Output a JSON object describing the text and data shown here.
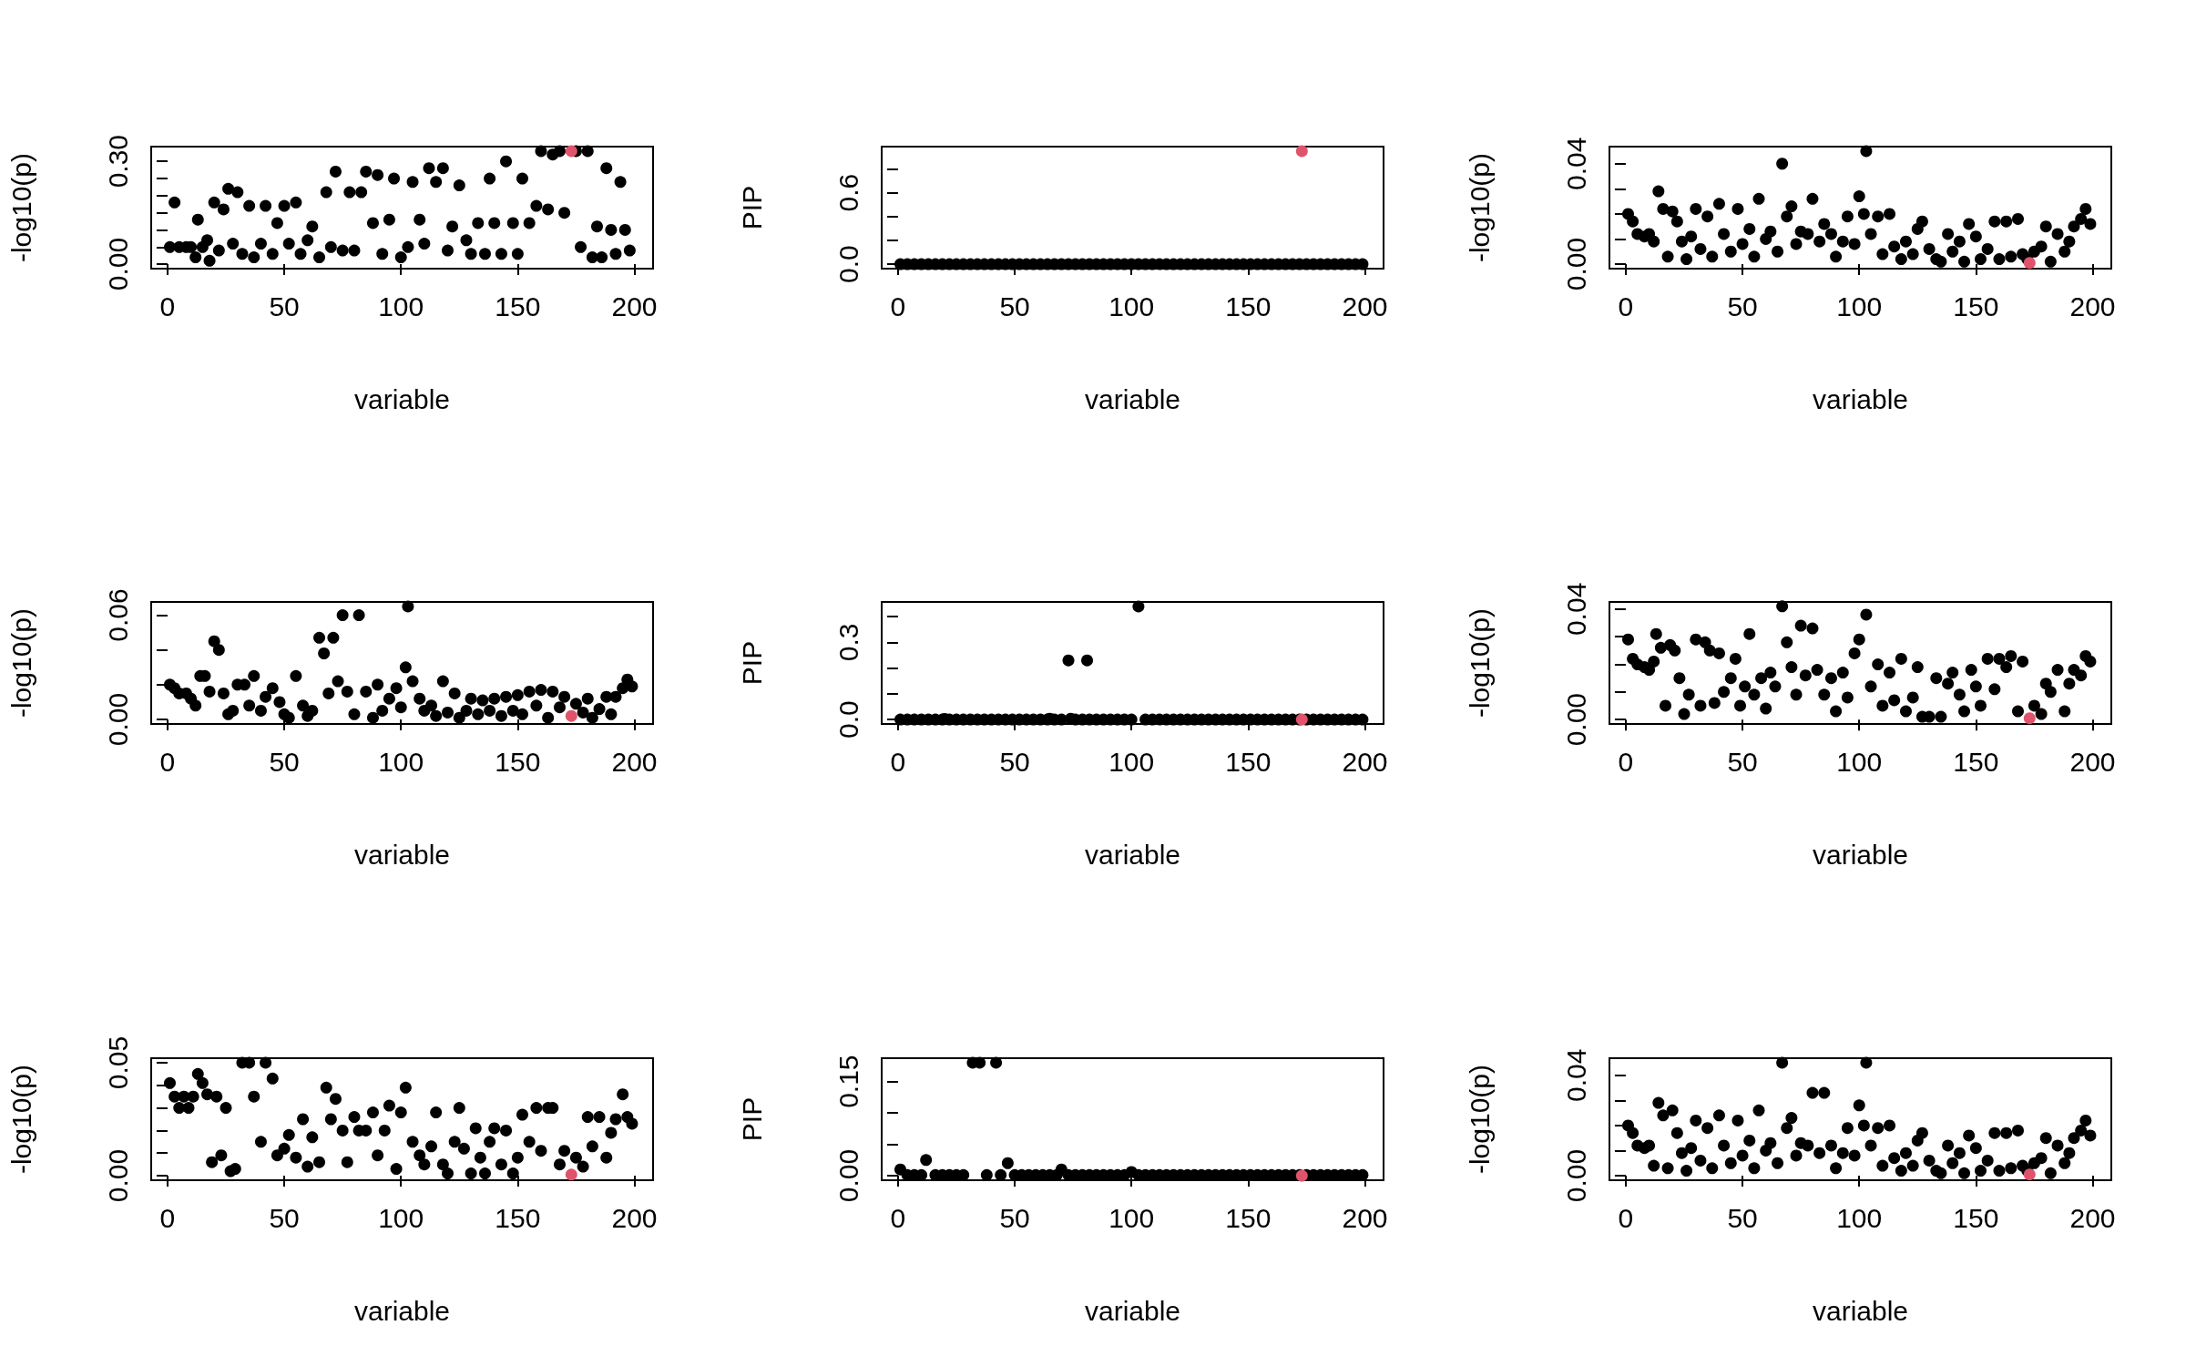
{
  "chart_data": [
    {
      "type": "scatter",
      "xlabel": "variable",
      "ylabel": "-log10(p)",
      "marker": "circle",
      "xlim": [
        -7,
        208
      ],
      "xticks": [
        0,
        50,
        100,
        150,
        200
      ],
      "ylim": [
        -0.013,
        0.343
      ],
      "yticks": [
        {
          "value": 0,
          "label": "0.00"
        },
        {
          "value": 0.05,
          "label": null
        },
        {
          "value": 0.1,
          "label": null
        },
        {
          "value": 0.15,
          "label": null
        },
        {
          "value": 0.2,
          "label": null
        },
        {
          "value": 0.25,
          "label": null
        },
        {
          "value": 0.3,
          "label": "0.30"
        }
      ],
      "series": [
        {
          "color": "#000000",
          "x": [
            1,
            3,
            5,
            8,
            10,
            12,
            13,
            15,
            17,
            18,
            20,
            22,
            24,
            26,
            28,
            30,
            32,
            35,
            37,
            40,
            42,
            45,
            47,
            50,
            52,
            55,
            57,
            60,
            62,
            65,
            68,
            70,
            72,
            75,
            78,
            80,
            83,
            85,
            88,
            90,
            92,
            95,
            97,
            100,
            103,
            105,
            108,
            110,
            112,
            115,
            118,
            120,
            122,
            125,
            128,
            130,
            133,
            136,
            138,
            140,
            143,
            145,
            148,
            150,
            152,
            155,
            158,
            160,
            163,
            165,
            168,
            170,
            175,
            177,
            180,
            182,
            184,
            186,
            188,
            190,
            192,
            194,
            196,
            198
          ],
          "values": [
            0.05,
            0.18,
            0.05,
            0.05,
            0.05,
            0.02,
            0.13,
            0.05,
            0.07,
            0.01,
            0.18,
            0.04,
            0.16,
            0.22,
            0.06,
            0.21,
            0.03,
            0.17,
            0.02,
            0.06,
            0.17,
            0.03,
            0.12,
            0.17,
            0.06,
            0.18,
            0.03,
            0.07,
            0.11,
            0.02,
            0.21,
            0.05,
            0.27,
            0.04,
            0.21,
            0.04,
            0.21,
            0.27,
            0.12,
            0.26,
            0.03,
            0.13,
            0.25,
            0.02,
            0.05,
            0.24,
            0.13,
            0.06,
            0.28,
            0.24,
            0.28,
            0.04,
            0.11,
            0.23,
            0.07,
            0.03,
            0.12,
            0.03,
            0.25,
            0.12,
            0.03,
            0.3,
            0.12,
            0.03,
            0.25,
            0.12,
            0.17,
            0.33,
            0.16,
            0.32,
            0.33,
            0.15,
            0.33,
            0.05,
            0.33,
            0.02,
            0.11,
            0.02,
            0.28,
            0.1,
            0.03,
            0.24,
            0.1,
            0.04
          ]
        },
        {
          "color": "#df536b",
          "x": [
            173
          ],
          "values": [
            0.33
          ]
        }
      ]
    },
    {
      "type": "scatter",
      "xlabel": "variable",
      "ylabel": "PIP",
      "marker": "circle",
      "xlim": [
        -7,
        208
      ],
      "xticks": [
        0,
        50,
        100,
        150,
        200
      ],
      "ylim": [
        -0.038,
        0.988
      ],
      "yticks": [
        {
          "value": 0,
          "label": "0.0"
        },
        {
          "value": 0.2,
          "label": null
        },
        {
          "value": 0.4,
          "label": null
        },
        {
          "value": 0.6,
          "label": "0.6"
        },
        {
          "value": 0.8,
          "label": null
        }
      ],
      "series": [
        {
          "color": "#000000",
          "x": [
            1,
            4,
            7,
            10,
            13,
            16,
            19,
            22,
            25,
            28,
            31,
            34,
            37,
            40,
            43,
            46,
            49,
            52,
            55,
            58,
            61,
            64,
            67,
            70,
            73,
            76,
            79,
            82,
            85,
            88,
            91,
            94,
            97,
            100,
            103,
            106,
            109,
            112,
            115,
            118,
            121,
            124,
            127,
            130,
            133,
            136,
            139,
            142,
            145,
            148,
            151,
            154,
            157,
            160,
            163,
            166,
            169,
            172,
            175,
            178,
            181,
            184,
            187,
            190,
            193,
            196,
            199
          ],
          "values": [
            0,
            0,
            0,
            0,
            0,
            0,
            0,
            0,
            0,
            0,
            0,
            0,
            0,
            0,
            0,
            0,
            0,
            0,
            0,
            0,
            0,
            0,
            0,
            0,
            0,
            0,
            0,
            0,
            0,
            0,
            0,
            0,
            0,
            0,
            0,
            0,
            0,
            0,
            0,
            0,
            0,
            0,
            0,
            0,
            0,
            0,
            0,
            0,
            0,
            0,
            0,
            0,
            0,
            0,
            0,
            0,
            0,
            0,
            0,
            0,
            0,
            0,
            0,
            0,
            0,
            0,
            0
          ]
        },
        {
          "color": "#df536b",
          "x": [
            173
          ],
          "values": [
            0.95
          ]
        }
      ]
    },
    {
      "type": "scatter",
      "xlabel": "variable",
      "ylabel": "-log10(p)",
      "marker": "circle",
      "xlim": [
        -7,
        208
      ],
      "xticks": [
        0,
        50,
        100,
        150,
        200
      ],
      "ylim": [
        -0.0018,
        0.0468
      ],
      "yticks": [
        {
          "value": 0,
          "label": "0.00"
        },
        {
          "value": 0.01,
          "label": null
        },
        {
          "value": 0.02,
          "label": null
        },
        {
          "value": 0.03,
          "label": null
        },
        {
          "value": 0.04,
          "label": "0.04"
        }
      ],
      "series": [
        {
          "color": "#000000",
          "x": [
            1,
            3,
            5,
            8,
            10,
            12,
            14,
            16,
            18,
            20,
            22,
            24,
            26,
            28,
            30,
            32,
            35,
            37,
            40,
            42,
            45,
            48,
            50,
            53,
            55,
            57,
            60,
            62,
            65,
            67,
            69,
            71,
            73,
            75,
            78,
            80,
            83,
            85,
            88,
            90,
            93,
            95,
            98,
            100,
            102,
            103,
            105,
            108,
            110,
            113,
            115,
            118,
            120,
            123,
            125,
            127,
            130,
            133,
            135,
            138,
            140,
            143,
            145,
            147,
            150,
            152,
            155,
            158,
            160,
            163,
            165,
            168,
            170,
            172,
            175,
            178,
            180,
            182,
            185,
            188,
            190,
            192,
            195,
            197,
            199
          ],
          "values": [
            0.02,
            0.017,
            0.012,
            0.011,
            0.012,
            0.009,
            0.029,
            0.022,
            0.003,
            0.021,
            0.017,
            0.009,
            0.002,
            0.011,
            0.022,
            0.006,
            0.019,
            0.003,
            0.024,
            0.012,
            0.005,
            0.022,
            0.008,
            0.014,
            0.003,
            0.026,
            0.01,
            0.013,
            0.005,
            0.04,
            0.019,
            0.023,
            0.008,
            0.013,
            0.012,
            0.026,
            0.009,
            0.016,
            0.012,
            0.003,
            0.009,
            0.019,
            0.008,
            0.027,
            0.02,
            0.045,
            0.012,
            0.019,
            0.004,
            0.02,
            0.007,
            0.002,
            0.009,
            0.004,
            0.014,
            0.017,
            0.006,
            0.002,
            0.001,
            0.012,
            0.005,
            0.009,
            0.001,
            0.016,
            0.011,
            0.002,
            0.006,
            0.017,
            0.002,
            0.017,
            0.003,
            0.018,
            0.004,
            0.002,
            0.005,
            0.007,
            0.015,
            0.001,
            0.012,
            0.005,
            0.009,
            0.015,
            0.018,
            0.022,
            0.016
          ]
        },
        {
          "color": "#df536b",
          "x": [
            173
          ],
          "values": [
            0.0005
          ]
        }
      ]
    },
    {
      "type": "scatter",
      "xlabel": "variable",
      "ylabel": "-log10(p)",
      "marker": "circle",
      "xlim": [
        -7,
        208
      ],
      "xticks": [
        0,
        50,
        100,
        150,
        200
      ],
      "ylim": [
        -0.0026,
        0.0676
      ],
      "yticks": [
        {
          "value": 0,
          "label": "0.00"
        },
        {
          "value": 0.02,
          "label": null
        },
        {
          "value": 0.04,
          "label": null
        },
        {
          "value": 0.06,
          "label": "0.06"
        }
      ],
      "series": [
        {
          "color": "#000000",
          "x": [
            1,
            3,
            5,
            8,
            10,
            12,
            14,
            16,
            18,
            20,
            22,
            24,
            26,
            28,
            30,
            33,
            35,
            37,
            40,
            42,
            45,
            48,
            50,
            52,
            55,
            58,
            60,
            62,
            65,
            67,
            69,
            71,
            73,
            75,
            77,
            80,
            82,
            85,
            88,
            90,
            92,
            95,
            98,
            100,
            102,
            103,
            105,
            108,
            110,
            113,
            115,
            118,
            120,
            123,
            125,
            128,
            130,
            133,
            135,
            138,
            140,
            143,
            145,
            148,
            150,
            152,
            155,
            158,
            160,
            163,
            165,
            168,
            170,
            175,
            178,
            180,
            182,
            185,
            188,
            190,
            192,
            195,
            197,
            199
          ],
          "values": [
            0.02,
            0.018,
            0.015,
            0.015,
            0.012,
            0.008,
            0.025,
            0.025,
            0.016,
            0.045,
            0.04,
            0.015,
            0.003,
            0.005,
            0.02,
            0.02,
            0.008,
            0.025,
            0.005,
            0.013,
            0.018,
            0.01,
            0.003,
            0.001,
            0.025,
            0.008,
            0.002,
            0.005,
            0.047,
            0.038,
            0.015,
            0.047,
            0.022,
            0.06,
            0.016,
            0.003,
            0.06,
            0.016,
            0.001,
            0.02,
            0.005,
            0.012,
            0.018,
            0.007,
            0.03,
            0.065,
            0.022,
            0.012,
            0.005,
            0.008,
            0.002,
            0.022,
            0.004,
            0.015,
            0.001,
            0.005,
            0.012,
            0.003,
            0.011,
            0.005,
            0.012,
            0.002,
            0.013,
            0.005,
            0.014,
            0.003,
            0.016,
            0.008,
            0.017,
            0.001,
            0.016,
            0.007,
            0.013,
            0.009,
            0.004,
            0.012,
            0.001,
            0.006,
            0.013,
            0.003,
            0.013,
            0.018,
            0.023,
            0.019
          ]
        },
        {
          "color": "#df536b",
          "x": [
            173
          ],
          "values": [
            0.002
          ]
        }
      ]
    },
    {
      "type": "scatter",
      "xlabel": "variable",
      "ylabel": "PIP",
      "marker": "circle",
      "xlim": [
        -7,
        208
      ],
      "xticks": [
        0,
        50,
        100,
        150,
        200
      ],
      "ylim": [
        -0.0176,
        0.4576
      ],
      "yticks": [
        {
          "value": 0,
          "label": "0.0"
        },
        {
          "value": 0.1,
          "label": null
        },
        {
          "value": 0.2,
          "label": null
        },
        {
          "value": 0.3,
          "label": "0.3"
        },
        {
          "value": 0.4,
          "label": null
        }
      ],
      "series": [
        {
          "color": "#000000",
          "x": [
            1,
            4,
            7,
            10,
            13,
            16,
            19,
            20,
            22,
            25,
            28,
            31,
            34,
            37,
            40,
            43,
            46,
            49,
            52,
            55,
            58,
            61,
            64,
            65,
            67,
            70,
            73,
            74,
            76,
            79,
            81,
            82,
            85,
            88,
            91,
            94,
            97,
            100,
            103,
            106,
            109,
            112,
            115,
            118,
            121,
            124,
            127,
            130,
            133,
            136,
            139,
            142,
            145,
            148,
            151,
            154,
            157,
            160,
            163,
            166,
            169,
            172,
            175,
            178,
            181,
            184,
            187,
            190,
            193,
            196,
            199
          ],
          "values": [
            0,
            0,
            0,
            0,
            0,
            0,
            0,
            0.002,
            0,
            0,
            0,
            0,
            0,
            0,
            0,
            0,
            0,
            0,
            0,
            0,
            0,
            0,
            0,
            0.003,
            0,
            0,
            0.23,
            0.003,
            0,
            0,
            0.23,
            0,
            0,
            0,
            0,
            0,
            0,
            0,
            0.44,
            0,
            0,
            0,
            0,
            0,
            0,
            0,
            0,
            0,
            0,
            0,
            0,
            0,
            0,
            0,
            0,
            0,
            0,
            0,
            0,
            0,
            0,
            0,
            0,
            0,
            0,
            0,
            0,
            0,
            0,
            0,
            0
          ]
        },
        {
          "color": "#df536b",
          "x": [
            173
          ],
          "values": [
            0
          ]
        }
      ]
    },
    {
      "type": "scatter",
      "xlabel": "variable",
      "ylabel": "-log10(p)",
      "marker": "circle",
      "xlim": [
        -7,
        208
      ],
      "xticks": [
        0,
        50,
        100,
        150,
        200
      ],
      "ylim": [
        -0.0016,
        0.0426
      ],
      "yticks": [
        {
          "value": 0,
          "label": "0.00"
        },
        {
          "value": 0.01,
          "label": null
        },
        {
          "value": 0.02,
          "label": null
        },
        {
          "value": 0.03,
          "label": null
        },
        {
          "value": 0.04,
          "label": "0.04"
        }
      ],
      "series": [
        {
          "color": "#000000",
          "x": [
            1,
            3,
            5,
            8,
            10,
            12,
            13,
            15,
            17,
            19,
            21,
            23,
            25,
            27,
            30,
            32,
            34,
            36,
            38,
            40,
            42,
            45,
            47,
            49,
            51,
            53,
            55,
            58,
            60,
            62,
            64,
            67,
            69,
            71,
            73,
            75,
            77,
            80,
            82,
            85,
            88,
            90,
            93,
            95,
            98,
            100,
            103,
            105,
            108,
            110,
            113,
            115,
            118,
            120,
            123,
            125,
            127,
            130,
            133,
            135,
            138,
            140,
            143,
            145,
            148,
            150,
            152,
            155,
            158,
            160,
            163,
            165,
            168,
            170,
            175,
            178,
            180,
            182,
            185,
            188,
            190,
            192,
            195,
            197,
            199
          ],
          "values": [
            0.029,
            0.022,
            0.02,
            0.019,
            0.018,
            0.021,
            0.031,
            0.026,
            0.005,
            0.027,
            0.025,
            0.015,
            0.002,
            0.009,
            0.029,
            0.005,
            0.028,
            0.025,
            0.006,
            0.024,
            0.01,
            0.015,
            0.022,
            0.005,
            0.012,
            0.031,
            0.009,
            0.015,
            0.004,
            0.017,
            0.012,
            0.041,
            0.028,
            0.019,
            0.009,
            0.034,
            0.016,
            0.033,
            0.018,
            0.009,
            0.015,
            0.003,
            0.017,
            0.008,
            0.024,
            0.029,
            0.038,
            0.012,
            0.02,
            0.005,
            0.017,
            0.007,
            0.022,
            0.003,
            0.008,
            0.019,
            0.001,
            0.001,
            0.015,
            0.001,
            0.013,
            0.017,
            0.009,
            0.003,
            0.018,
            0.012,
            0.005,
            0.022,
            0.011,
            0.022,
            0.019,
            0.023,
            0.003,
            0.021,
            0.005,
            0.002,
            0.013,
            0.01,
            0.018,
            0.003,
            0.013,
            0.018,
            0.016,
            0.023,
            0.021
          ]
        },
        {
          "color": "#df536b",
          "x": [
            173
          ],
          "values": [
            0.0005
          ]
        }
      ]
    },
    {
      "type": "scatter",
      "xlabel": "variable",
      "ylabel": "-log10(p)",
      "marker": "circle",
      "xlim": [
        -7,
        208
      ],
      "xticks": [
        0,
        50,
        100,
        150,
        200
      ],
      "ylim": [
        -0.002,
        0.052
      ],
      "yticks": [
        {
          "value": 0,
          "label": "0.00"
        },
        {
          "value": 0.01,
          "label": null
        },
        {
          "value": 0.02,
          "label": null
        },
        {
          "value": 0.03,
          "label": null
        },
        {
          "value": 0.04,
          "label": null
        },
        {
          "value": 0.05,
          "label": "0.05"
        }
      ],
      "series": [
        {
          "color": "#000000",
          "x": [
            1,
            3,
            5,
            7,
            9,
            11,
            13,
            15,
            17,
            19,
            21,
            23,
            25,
            27,
            29,
            32,
            35,
            37,
            40,
            42,
            45,
            47,
            50,
            52,
            55,
            58,
            60,
            62,
            65,
            68,
            70,
            72,
            75,
            77,
            80,
            82,
            85,
            88,
            90,
            93,
            95,
            98,
            100,
            102,
            105,
            108,
            110,
            113,
            115,
            118,
            120,
            123,
            125,
            127,
            130,
            132,
            134,
            136,
            138,
            140,
            143,
            145,
            148,
            150,
            152,
            155,
            158,
            160,
            163,
            165,
            168,
            170,
            175,
            178,
            180,
            182,
            185,
            188,
            190,
            192,
            195,
            197,
            199
          ],
          "values": [
            0.041,
            0.035,
            0.03,
            0.035,
            0.03,
            0.035,
            0.045,
            0.041,
            0.036,
            0.006,
            0.035,
            0.009,
            0.03,
            0.002,
            0.003,
            0.05,
            0.05,
            0.035,
            0.015,
            0.05,
            0.043,
            0.009,
            0.012,
            0.018,
            0.008,
            0.025,
            0.004,
            0.017,
            0.006,
            0.039,
            0.025,
            0.034,
            0.02,
            0.006,
            0.026,
            0.02,
            0.02,
            0.028,
            0.009,
            0.02,
            0.031,
            0.003,
            0.028,
            0.039,
            0.015,
            0.009,
            0.005,
            0.013,
            0.028,
            0.005,
            0.001,
            0.015,
            0.03,
            0.012,
            0.001,
            0.021,
            0.008,
            0.001,
            0.015,
            0.021,
            0.005,
            0.02,
            0.001,
            0.008,
            0.027,
            0.015,
            0.03,
            0.011,
            0.03,
            0.03,
            0.005,
            0.011,
            0.008,
            0.004,
            0.026,
            0.013,
            0.026,
            0.008,
            0.019,
            0.025,
            0.036,
            0.026,
            0.023
          ]
        },
        {
          "color": "#df536b",
          "x": [
            173
          ],
          "values": [
            0.0005
          ]
        }
      ]
    },
    {
      "type": "scatter",
      "xlabel": "variable",
      "ylabel": "PIP",
      "marker": "circle",
      "xlim": [
        -7,
        208
      ],
      "xticks": [
        0,
        50,
        100,
        150,
        200
      ],
      "ylim": [
        -0.0072,
        0.1872
      ],
      "yticks": [
        {
          "value": 0,
          "label": "0.00"
        },
        {
          "value": 0.05,
          "label": null
        },
        {
          "value": 0.1,
          "label": null
        },
        {
          "value": 0.15,
          "label": "0.15"
        }
      ],
      "series": [
        {
          "color": "#000000",
          "x": [
            1,
            4,
            7,
            10,
            12,
            16,
            19,
            22,
            25,
            28,
            32,
            35,
            38,
            42,
            44,
            47,
            50,
            53,
            56,
            59,
            62,
            65,
            68,
            70,
            73,
            76,
            79,
            82,
            85,
            88,
            91,
            94,
            97,
            100,
            103,
            106,
            109,
            112,
            115,
            118,
            121,
            124,
            127,
            130,
            133,
            136,
            139,
            142,
            145,
            148,
            151,
            154,
            157,
            160,
            163,
            166,
            169,
            172,
            175,
            178,
            181,
            184,
            187,
            190,
            193,
            196,
            199
          ],
          "values": [
            0.01,
            0.001,
            0.001,
            0.001,
            0.025,
            0.001,
            0.001,
            0.001,
            0.001,
            0.001,
            0.18,
            0.18,
            0.001,
            0.18,
            0.001,
            0.02,
            0.001,
            0.001,
            0.001,
            0.001,
            0.001,
            0.001,
            0.001,
            0.01,
            0.001,
            0.001,
            0.001,
            0.001,
            0.001,
            0.001,
            0.001,
            0.001,
            0.001,
            0.006,
            0.001,
            0.001,
            0.001,
            0.001,
            0.001,
            0.001,
            0.001,
            0.001,
            0.001,
            0.001,
            0.001,
            0.001,
            0.001,
            0.001,
            0.001,
            0.001,
            0.001,
            0.001,
            0.001,
            0.001,
            0.001,
            0.001,
            0.001,
            0.001,
            0.001,
            0.001,
            0.001,
            0.001,
            0.001,
            0.001,
            0.001,
            0.001,
            0.001
          ]
        },
        {
          "color": "#df536b",
          "x": [
            173
          ],
          "values": [
            0
          ]
        }
      ]
    },
    {
      "type": "scatter",
      "xlabel": "variable",
      "ylabel": "-log10(p)",
      "marker": "circle",
      "xlim": [
        -7,
        208
      ],
      "xticks": [
        0,
        50,
        100,
        150,
        200
      ],
      "ylim": [
        -0.0018,
        0.0468
      ],
      "yticks": [
        {
          "value": 0,
          "label": "0.00"
        },
        {
          "value": 0.01,
          "label": null
        },
        {
          "value": 0.02,
          "label": null
        },
        {
          "value": 0.03,
          "label": null
        },
        {
          "value": 0.04,
          "label": "0.04"
        }
      ],
      "series": [
        {
          "color": "#000000",
          "x": [
            1,
            3,
            5,
            8,
            10,
            12,
            14,
            16,
            18,
            20,
            22,
            24,
            26,
            28,
            30,
            32,
            35,
            37,
            40,
            42,
            45,
            48,
            50,
            53,
            55,
            57,
            60,
            62,
            65,
            67,
            69,
            71,
            73,
            75,
            78,
            80,
            83,
            85,
            88,
            90,
            93,
            95,
            98,
            100,
            102,
            103,
            105,
            108,
            110,
            113,
            115,
            118,
            120,
            123,
            125,
            127,
            130,
            133,
            135,
            138,
            140,
            143,
            145,
            147,
            150,
            152,
            155,
            158,
            160,
            163,
            165,
            168,
            170,
            172,
            175,
            178,
            180,
            182,
            185,
            188,
            190,
            192,
            195,
            197,
            199
          ],
          "values": [
            0.02,
            0.017,
            0.012,
            0.011,
            0.012,
            0.004,
            0.029,
            0.024,
            0.003,
            0.026,
            0.017,
            0.009,
            0.002,
            0.011,
            0.022,
            0.006,
            0.019,
            0.003,
            0.024,
            0.012,
            0.005,
            0.022,
            0.008,
            0.014,
            0.003,
            0.026,
            0.01,
            0.013,
            0.005,
            0.045,
            0.019,
            0.023,
            0.008,
            0.013,
            0.012,
            0.033,
            0.009,
            0.033,
            0.012,
            0.003,
            0.009,
            0.019,
            0.008,
            0.028,
            0.02,
            0.045,
            0.012,
            0.019,
            0.004,
            0.02,
            0.007,
            0.002,
            0.009,
            0.004,
            0.014,
            0.017,
            0.006,
            0.002,
            0.001,
            0.012,
            0.005,
            0.009,
            0.001,
            0.016,
            0.011,
            0.002,
            0.006,
            0.017,
            0.002,
            0.017,
            0.003,
            0.018,
            0.004,
            0.002,
            0.005,
            0.007,
            0.015,
            0.001,
            0.012,
            0.005,
            0.009,
            0.015,
            0.018,
            0.022,
            0.016
          ]
        },
        {
          "color": "#df536b",
          "x": [
            173
          ],
          "values": [
            0.0005
          ]
        }
      ]
    }
  ]
}
